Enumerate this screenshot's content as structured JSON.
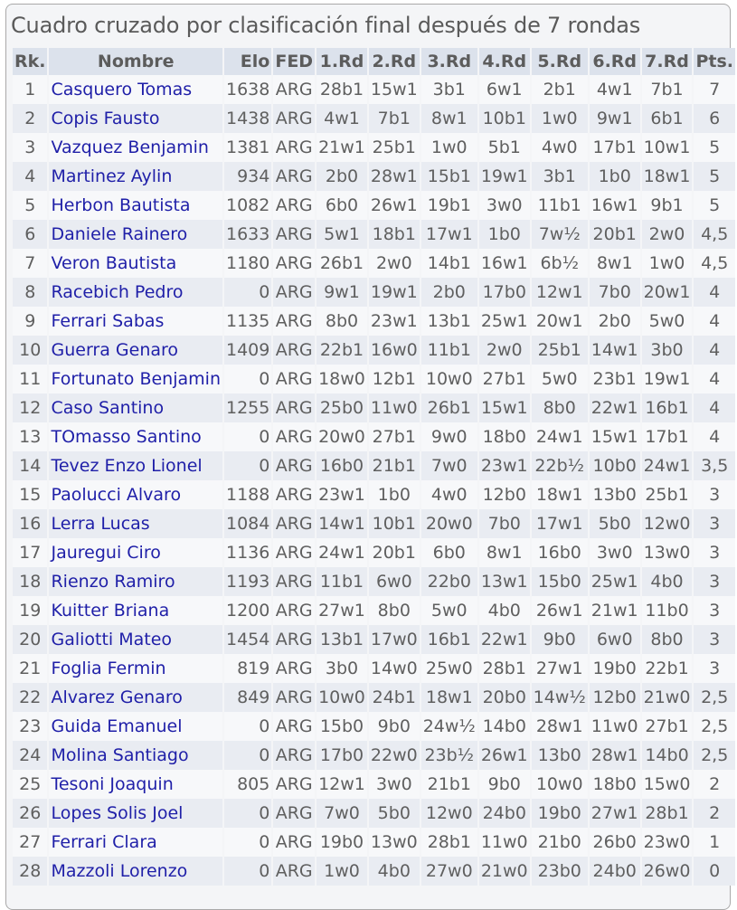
{
  "title": "Cuadro cruzado por clasificación final después de 7 rondas",
  "headers": [
    "Rk.",
    "Nombre",
    "Elo",
    "FED",
    "1.Rd",
    "2.Rd",
    "3.Rd",
    "4.Rd",
    "5.Rd",
    "6.Rd",
    "7.Rd",
    "Pts."
  ],
  "colors": {
    "name_link": "#1f1fa8",
    "header_bg": "#dce2ec",
    "row_alt": "#e9ecf2"
  },
  "rows": [
    [
      "1",
      "Casquero Tomas",
      "1638",
      "ARG",
      "28b1",
      "15w1",
      "3b1",
      "6w1",
      "2b1",
      "4w1",
      "7b1",
      "7"
    ],
    [
      "2",
      "Copis Fausto",
      "1438",
      "ARG",
      "4w1",
      "7b1",
      "8w1",
      "10b1",
      "1w0",
      "9w1",
      "6b1",
      "6"
    ],
    [
      "3",
      "Vazquez Benjamin",
      "1381",
      "ARG",
      "21w1",
      "25b1",
      "1w0",
      "5b1",
      "4w0",
      "17b1",
      "10w1",
      "5"
    ],
    [
      "4",
      "Martinez Aylin",
      "934",
      "ARG",
      "2b0",
      "28w1",
      "15b1",
      "19w1",
      "3b1",
      "1b0",
      "18w1",
      "5"
    ],
    [
      "5",
      "Herbon Bautista",
      "1082",
      "ARG",
      "6b0",
      "26w1",
      "19b1",
      "3w0",
      "11b1",
      "16w1",
      "9b1",
      "5"
    ],
    [
      "6",
      "Daniele Rainero",
      "1633",
      "ARG",
      "5w1",
      "18b1",
      "17w1",
      "1b0",
      "7w½",
      "20b1",
      "2w0",
      "4,5"
    ],
    [
      "7",
      "Veron Bautista",
      "1180",
      "ARG",
      "26b1",
      "2w0",
      "14b1",
      "16w1",
      "6b½",
      "8w1",
      "1w0",
      "4,5"
    ],
    [
      "8",
      "Racebich Pedro",
      "0",
      "ARG",
      "9w1",
      "19w1",
      "2b0",
      "17b0",
      "12w1",
      "7b0",
      "20w1",
      "4"
    ],
    [
      "9",
      "Ferrari Sabas",
      "1135",
      "ARG",
      "8b0",
      "23w1",
      "13b1",
      "25w1",
      "20w1",
      "2b0",
      "5w0",
      "4"
    ],
    [
      "10",
      "Guerra Genaro",
      "1409",
      "ARG",
      "22b1",
      "16w0",
      "11b1",
      "2w0",
      "25b1",
      "14w1",
      "3b0",
      "4"
    ],
    [
      "11",
      "Fortunato Benjamin",
      "0",
      "ARG",
      "18w0",
      "12b1",
      "10w0",
      "27b1",
      "5w0",
      "23b1",
      "19w1",
      "4"
    ],
    [
      "12",
      "Caso Santino",
      "1255",
      "ARG",
      "25b0",
      "11w0",
      "26b1",
      "15w1",
      "8b0",
      "22w1",
      "16b1",
      "4"
    ],
    [
      "13",
      "TOmasso Santino",
      "0",
      "ARG",
      "20w0",
      "27b1",
      "9w0",
      "18b0",
      "24w1",
      "15w1",
      "17b1",
      "4"
    ],
    [
      "14",
      "Tevez Enzo Lionel",
      "0",
      "ARG",
      "16b0",
      "21b1",
      "7w0",
      "23w1",
      "22b½",
      "10b0",
      "24w1",
      "3,5"
    ],
    [
      "15",
      "Paolucci Alvaro",
      "1188",
      "ARG",
      "23w1",
      "1b0",
      "4w0",
      "12b0",
      "18w1",
      "13b0",
      "25b1",
      "3"
    ],
    [
      "16",
      "Lerra Lucas",
      "1084",
      "ARG",
      "14w1",
      "10b1",
      "20w0",
      "7b0",
      "17w1",
      "5b0",
      "12w0",
      "3"
    ],
    [
      "17",
      "Jauregui Ciro",
      "1136",
      "ARG",
      "24w1",
      "20b1",
      "6b0",
      "8w1",
      "16b0",
      "3w0",
      "13w0",
      "3"
    ],
    [
      "18",
      "Rienzo Ramiro",
      "1193",
      "ARG",
      "11b1",
      "6w0",
      "22b0",
      "13w1",
      "15b0",
      "25w1",
      "4b0",
      "3"
    ],
    [
      "19",
      "Kuitter Briana",
      "1200",
      "ARG",
      "27w1",
      "8b0",
      "5w0",
      "4b0",
      "26w1",
      "21w1",
      "11b0",
      "3"
    ],
    [
      "20",
      "Galiotti Mateo",
      "1454",
      "ARG",
      "13b1",
      "17w0",
      "16b1",
      "22w1",
      "9b0",
      "6w0",
      "8b0",
      "3"
    ],
    [
      "21",
      "Foglia Fermin",
      "819",
      "ARG",
      "3b0",
      "14w0",
      "25w0",
      "28b1",
      "27w1",
      "19b0",
      "22b1",
      "3"
    ],
    [
      "22",
      "Alvarez Genaro",
      "849",
      "ARG",
      "10w0",
      "24b1",
      "18w1",
      "20b0",
      "14w½",
      "12b0",
      "21w0",
      "2,5"
    ],
    [
      "23",
      "Guida Emanuel",
      "0",
      "ARG",
      "15b0",
      "9b0",
      "24w½",
      "14b0",
      "28w1",
      "11w0",
      "27b1",
      "2,5"
    ],
    [
      "24",
      "Molina Santiago",
      "0",
      "ARG",
      "17b0",
      "22w0",
      "23b½",
      "26w1",
      "13b0",
      "28w1",
      "14b0",
      "2,5"
    ],
    [
      "25",
      "Tesoni Joaquin",
      "805",
      "ARG",
      "12w1",
      "3w0",
      "21b1",
      "9b0",
      "10w0",
      "18b0",
      "15w0",
      "2"
    ],
    [
      "26",
      "Lopes Solis Joel",
      "0",
      "ARG",
      "7w0",
      "5b0",
      "12w0",
      "24b0",
      "19b0",
      "27w1",
      "28b1",
      "2"
    ],
    [
      "27",
      "Ferrari Clara",
      "0",
      "ARG",
      "19b0",
      "13w0",
      "28b1",
      "11w0",
      "21b0",
      "26b0",
      "23w0",
      "1"
    ],
    [
      "28",
      "Mazzoli Lorenzo",
      "0",
      "ARG",
      "1w0",
      "4b0",
      "27w0",
      "21w0",
      "23b0",
      "24b0",
      "26w0",
      "0"
    ]
  ]
}
